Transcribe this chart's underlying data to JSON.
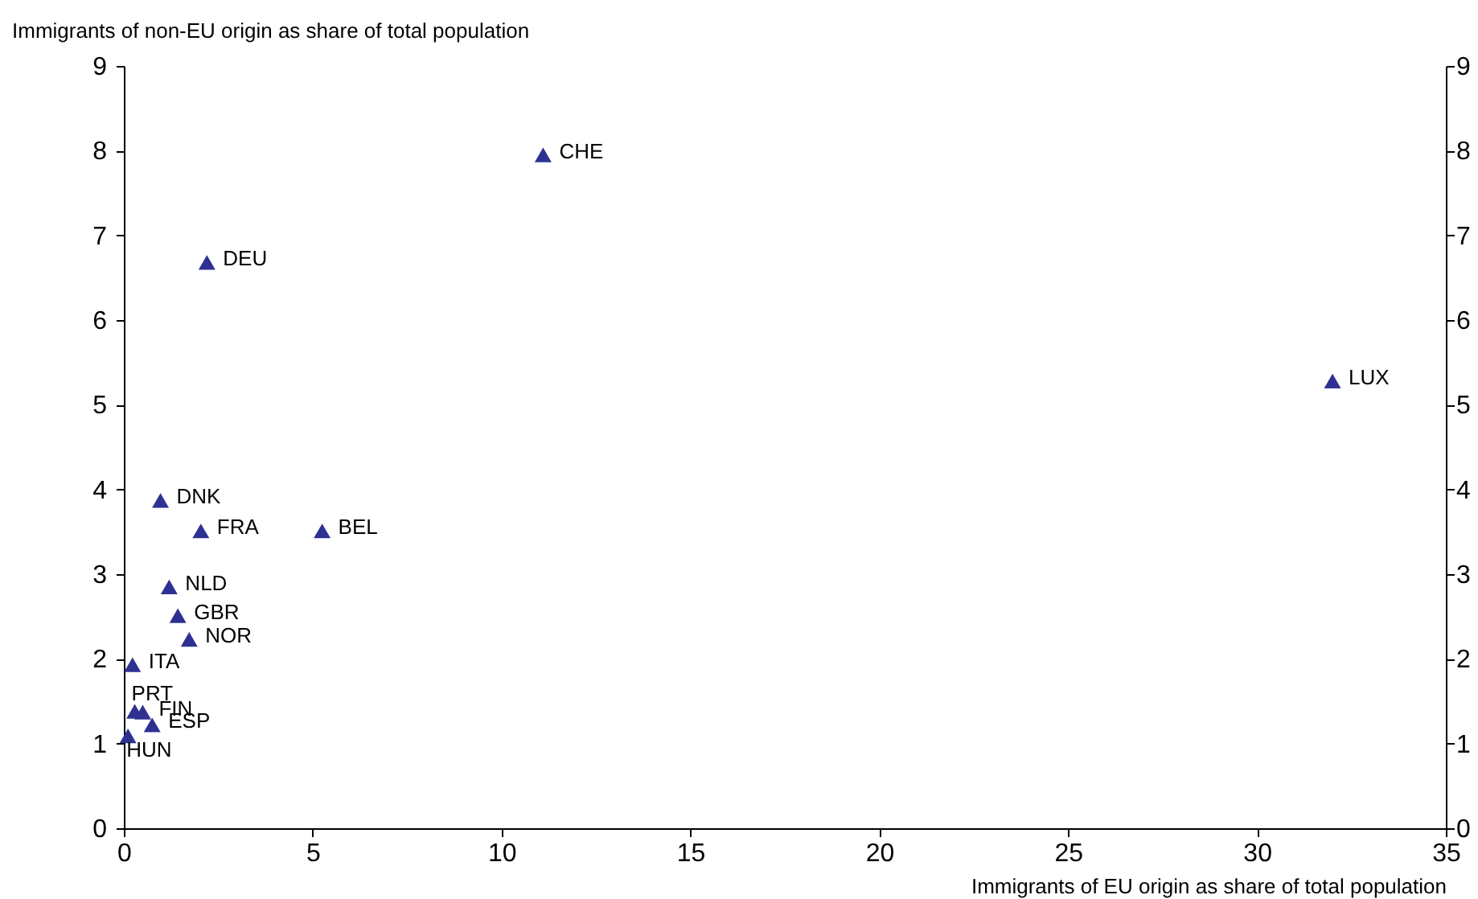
{
  "chart_data": {
    "type": "scatter",
    "xlabel": "Immigrants of EU origin as share of total population",
    "ylabel": "Immigrants of non-EU origin as share of total population",
    "xlim": [
      0,
      35
    ],
    "xticks": [
      0,
      5,
      10,
      15,
      20,
      25,
      30,
      35
    ],
    "ylim": [
      0,
      9
    ],
    "yticks": [
      0,
      1,
      2,
      3,
      4,
      5,
      6,
      7,
      8,
      9
    ],
    "y2lim": [
      0,
      9
    ],
    "y2ticks": [
      0,
      1,
      2,
      3,
      4,
      5,
      6,
      7,
      8,
      9
    ],
    "marker": "triangle",
    "grid": false,
    "series": [
      {
        "color": "#2e3192",
        "x": [
          11.1,
          2.2,
          32.0,
          0.97,
          2.04,
          5.25,
          1.2,
          1.43,
          1.73,
          0.23,
          0.29,
          0.5,
          0.75,
          0.11
        ],
        "values": [
          7.95,
          6.68,
          5.28,
          3.87,
          3.51,
          3.51,
          2.85,
          2.51,
          2.23,
          1.93,
          1.38,
          1.37,
          1.22,
          1.09
        ],
        "value_labels": [
          "CHE",
          "DEU",
          "LUX",
          "DNK",
          "FRA",
          "BEL",
          "NLD",
          "GBR",
          "NOR",
          "ITA",
          "PRT",
          "FIN",
          "ESP",
          "HUN"
        ]
      }
    ]
  }
}
